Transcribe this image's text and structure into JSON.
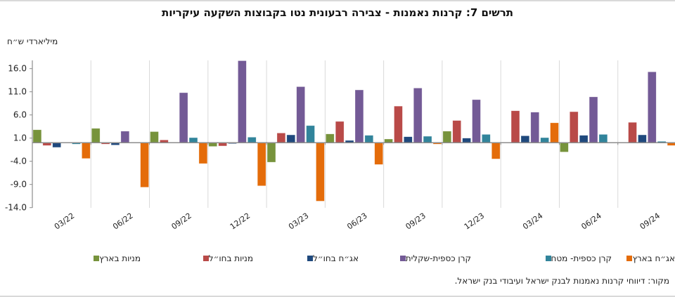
{
  "chart_data": {
    "type": "bar",
    "title": "תרשים 7: קרנות נאמנות - צבירה רבעונית נטו בקבוצות השקעה עיקריות",
    "ylabel": "מיליארדי ש״ח",
    "xlabel": "",
    "ylim": [
      -14,
      18
    ],
    "yticks": [
      16.0,
      11.0,
      6.0,
      1.0,
      -4.0,
      -9.0,
      -14.0
    ],
    "ytick_labels": [
      "16.0",
      "11.0",
      "6.0",
      "1.0",
      "-4.0",
      "-9.0",
      "-14.0"
    ],
    "grid": "vertical category separators",
    "legend_position": "bottom",
    "categories": [
      "03/22",
      "06/22",
      "09/22",
      "12/22",
      "03/23",
      "06/23",
      "09/23",
      "12/23",
      "03/24",
      "06/24",
      "09/24"
    ],
    "series": [
      {
        "name": "מניות בארץ",
        "color": "#77933C",
        "values": [
          2.8,
          3.1,
          2.4,
          -0.8,
          -4.2,
          1.9,
          0.8,
          2.5,
          0.0,
          -2.0,
          0.0
        ]
      },
      {
        "name": "מניות בחו״ל",
        "color": "#B94A48",
        "values": [
          -0.6,
          -0.3,
          0.6,
          -0.7,
          2.1,
          4.6,
          7.9,
          4.8,
          6.9,
          6.7,
          4.4
        ]
      },
      {
        "name": "אג״ח בחו״ל",
        "color": "#1F497D",
        "values": [
          -1.0,
          -0.5,
          0.0,
          -0.2,
          1.7,
          0.5,
          1.3,
          1.0,
          1.5,
          1.6,
          1.7
        ]
      },
      {
        "name": "קרן כספית-שקלית",
        "color": "#735A96",
        "values": [
          0.0,
          2.5,
          10.8,
          17.7,
          12.1,
          11.4,
          11.8,
          9.3,
          6.6,
          9.9,
          15.3
        ]
      },
      {
        "name": "קרן כספית- מטח",
        "color": "#31849B",
        "values": [
          -0.3,
          0.0,
          1.1,
          1.2,
          3.7,
          1.6,
          1.4,
          1.8,
          1.1,
          1.8,
          0.3
        ]
      },
      {
        "name": "אג״ח בארץ",
        "color": "#E46C0A",
        "values": [
          -3.4,
          -9.6,
          -4.5,
          -9.3,
          -12.6,
          -4.7,
          -0.3,
          -3.5,
          4.3,
          0.0,
          -0.6
        ]
      }
    ]
  },
  "source": "מקור: דיווחי קרנות נאמנות לבנק ישראל ועיבודי בנק ישראל."
}
